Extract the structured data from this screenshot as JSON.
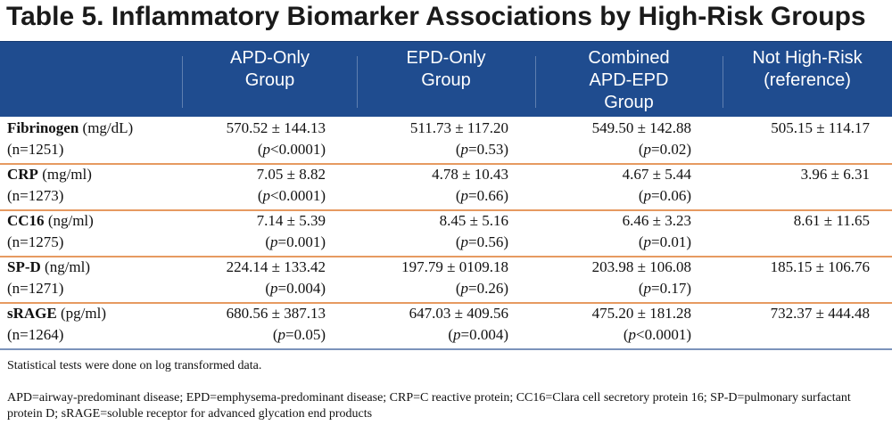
{
  "title": "Table 5. Inflammatory Biomarker Associations by High-Risk Groups",
  "columns": [
    "APD-Only\nGroup",
    "EPD-Only\nGroup",
    "Combined\nAPD-EPD\nGroup",
    "Not High-Risk\n(reference)"
  ],
  "rows": [
    {
      "name": "Fibrinogen",
      "unit": " (mg/dL)",
      "n": "(n=1251)",
      "vals": [
        "570.52 ± 144.13",
        "511.73 ± 117.20",
        "549.50 ± 142.88",
        "505.15 ± 114.17"
      ],
      "p": [
        "<0.0001",
        "=0.53",
        "=0.02",
        ""
      ]
    },
    {
      "name": "CRP",
      "unit": " (mg/ml)",
      "n": "(n=1273)",
      "vals": [
        "7.05 ± 8.82",
        "4.78 ± 10.43",
        "4.67 ± 5.44",
        "3.96 ± 6.31"
      ],
      "p": [
        "<0.0001",
        "=0.66",
        "=0.06",
        ""
      ]
    },
    {
      "name": "CC16",
      "unit": " (ng/ml)",
      "n": "(n=1275)",
      "vals": [
        "7.14 ± 5.39",
        "8.45 ± 5.16",
        "6.46 ± 3.23",
        "8.61 ± 11.65"
      ],
      "p": [
        "=0.001",
        "=0.56",
        "=0.01",
        ""
      ]
    },
    {
      "name": "SP-D",
      "unit": " (ng/ml)",
      "n": "(n=1271)",
      "vals": [
        "224.14 ± 133.42",
        "197.79 ± 0109.18",
        "203.98 ± 106.08",
        "185.15 ± 106.76"
      ],
      "p": [
        "=0.004",
        "=0.26",
        "=0.17",
        ""
      ]
    },
    {
      "name": "sRAGE",
      "unit": " (pg/ml)",
      "n": "(n=1264)",
      "vals": [
        "680.56 ± 387.13",
        "647.03 ± 409.56",
        "475.20 ± 181.28",
        "732.37 ± 444.48"
      ],
      "p": [
        "=0.05",
        "=0.004",
        "<0.0001",
        ""
      ]
    }
  ],
  "p_letter": "p",
  "notes": [
    "Statistical tests were done on log transformed data.",
    "APD=airway-predominant disease; EPD=emphysema-predominant disease; CRP=C reactive protein; CC16=Clara cell secretory protein 16; SP-D=pulmonary surfactant protein D; sRAGE=soluble receptor for advanced glycation end products"
  ]
}
